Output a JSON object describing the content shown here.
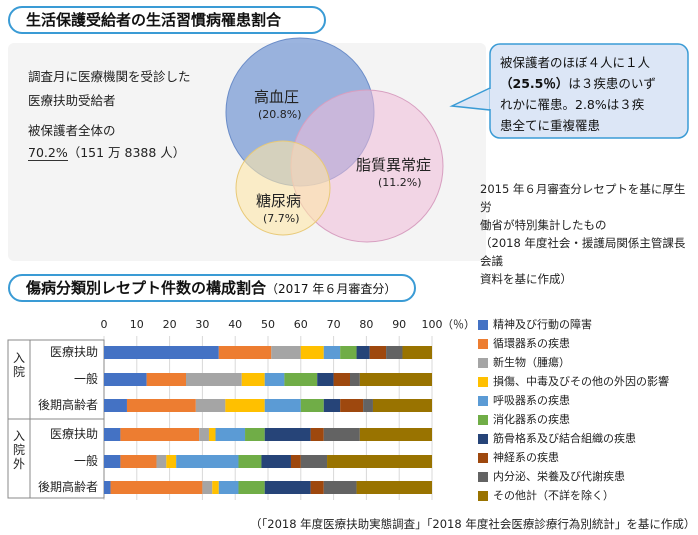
{
  "section1": {
    "title": "生活保護受給者の生活習慣病罹患割合",
    "left_text": {
      "line1": "調査月に医療機関を受診した",
      "line2": "医療扶助受給者",
      "line3": "被保護者全体の",
      "line4_value": "70.2%",
      "line4_rest": "（151 万 8388 人）"
    },
    "venn": {
      "hypertension": {
        "label": "高血圧",
        "value": "(20.8%)",
        "color": "#7f9fd6"
      },
      "dyslipidemia": {
        "label": "脂質異常症",
        "value": "(11.2%)",
        "color": "#e8b6d4"
      },
      "diabetes": {
        "label": "糖尿病",
        "value": "(7.7%)",
        "color": "#fbe0a0"
      }
    },
    "callout": {
      "line1": "被保護者のほぼ４人に１人",
      "line2_bold": "（25.5％）",
      "line2_rest": "は３疾患のいず",
      "line3": "れかに罹患。2.8%は３疾",
      "line4": "患全てに重複罹患"
    },
    "source": {
      "line1": "2015 年６月審査分レセプトを基に厚生労",
      "line2": "働省が特別集計したもの",
      "line3": "（2018 年度社会・援護局関係主管課長会議",
      "line4": "資料を基に作成）"
    }
  },
  "section2": {
    "title": "傷病分類別レセプト件数の構成割合",
    "title_sub": "（2017 年６月審査分）",
    "source": "（「2018 年度医療扶助実態調査」「2018 年度社会医療診療行為別統計」を基に作成）"
  },
  "chart_data": {
    "type": "bar",
    "orientation": "horizontal",
    "stacked": true,
    "x_ticks": [
      "0",
      "10",
      "20",
      "30",
      "40",
      "50",
      "60",
      "70",
      "80",
      "90",
      "100"
    ],
    "x_unit": "（％）",
    "xlim": [
      0,
      100
    ],
    "groups": [
      {
        "name": "入院",
        "categories": [
          "医療扶助",
          "一般",
          "後期高齢者"
        ]
      },
      {
        "name": "入院外",
        "categories": [
          "医療扶助",
          "一般",
          "後期高齢者"
        ]
      }
    ],
    "categories": [
      "入院 医療扶助",
      "入院 一般",
      "入院 後期高齢者",
      "入院外 医療扶助",
      "入院外 一般",
      "入院外 後期高齢者"
    ],
    "series": [
      {
        "name": "精神及び行動の障害",
        "color": "#4472c4",
        "values": [
          35,
          13,
          7,
          5,
          5,
          2
        ]
      },
      {
        "name": "循環器系の疾患",
        "color": "#ed7d31",
        "values": [
          16,
          12,
          21,
          24,
          11,
          28
        ]
      },
      {
        "name": "新生物（腫瘍）",
        "color": "#a5a5a5",
        "values": [
          9,
          17,
          9,
          3,
          3,
          3
        ]
      },
      {
        "name": "損傷、中毒及びその他の外因の影響",
        "color": "#ffc000",
        "values": [
          7,
          7,
          12,
          2,
          3,
          2
        ]
      },
      {
        "name": "呼吸器系の疾患",
        "color": "#5b9bd5",
        "values": [
          5,
          6,
          11,
          9,
          19,
          6
        ]
      },
      {
        "name": "消化器系の疾患",
        "color": "#70ad47",
        "values": [
          5,
          10,
          7,
          6,
          7,
          8
        ]
      },
      {
        "name": "筋骨格系及び結合組織の疾患",
        "color": "#264478",
        "values": [
          4,
          5,
          5,
          14,
          9,
          14
        ]
      },
      {
        "name": "神経系の疾患",
        "color": "#9e480e",
        "values": [
          5,
          5,
          7,
          4,
          3,
          4
        ]
      },
      {
        "name": "内分泌、栄養及び代謝疾患",
        "color": "#636363",
        "values": [
          5,
          3,
          3,
          11,
          8,
          10
        ]
      },
      {
        "name": "その他計（不詳を除く）",
        "color": "#997300",
        "values": [
          9,
          22,
          18,
          22,
          32,
          23
        ]
      }
    ]
  }
}
